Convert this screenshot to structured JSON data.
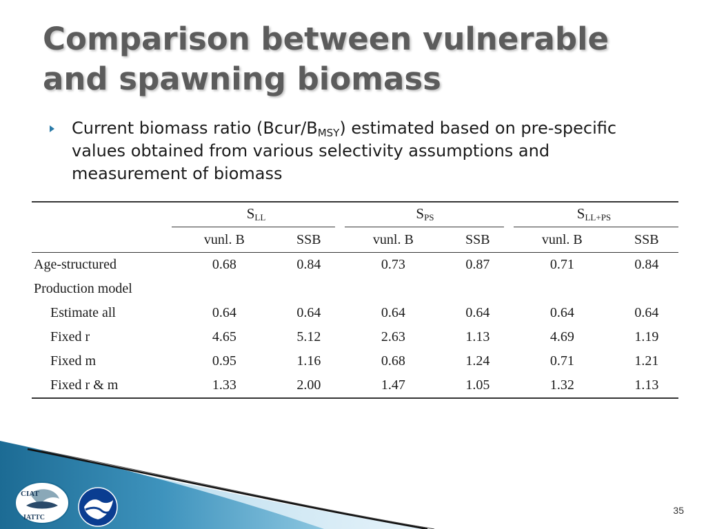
{
  "slide": {
    "title_line1": "Comparison between vulnerable",
    "title_line2": "and spawning biomass",
    "bullet": {
      "part1": "Current biomass ratio (Bcur/B",
      "subscript": "MSY",
      "part2": ") estimated based on pre-specific values obtained from various selectivity assumptions and measurement of biomass"
    },
    "page_number": "35"
  },
  "table": {
    "groups": [
      {
        "main": "S",
        "sub": "LL"
      },
      {
        "main": "S",
        "sub": "PS"
      },
      {
        "main": "S",
        "sub": "LL+PS"
      }
    ],
    "subheaders": [
      "vunl. B",
      "SSB",
      "vunl. B",
      "SSB",
      "vunl. B",
      "SSB"
    ],
    "rows": [
      {
        "label": "Age-structured",
        "values": [
          "0.68",
          "0.84",
          "0.73",
          "0.87",
          "0.71",
          "0.84"
        ]
      },
      {
        "label": "Production model",
        "values": []
      },
      {
        "label": "Estimate all",
        "values": [
          "0.64",
          "0.64",
          "0.64",
          "0.64",
          "0.64",
          "0.64"
        ]
      },
      {
        "label": "Fixed r",
        "values": [
          "4.65",
          "5.12",
          "2.63",
          "1.13",
          "4.69",
          "1.19"
        ]
      },
      {
        "label": "Fixed m",
        "values": [
          "0.95",
          "1.16",
          "0.68",
          "1.24",
          "0.71",
          "1.21"
        ]
      },
      {
        "label": "Fixed r & m",
        "values": [
          "1.33",
          "2.00",
          "1.47",
          "1.05",
          "1.32",
          "1.13"
        ]
      }
    ]
  },
  "logos": {
    "ciat_top": "CIAT",
    "ciat_bottom": "IATTC"
  },
  "colors": {
    "title": "#5c5c5c",
    "bullet_marker": "#2b7ba8",
    "footer_dark": "#1c6b94",
    "footer_light": "#bfe0ef"
  }
}
